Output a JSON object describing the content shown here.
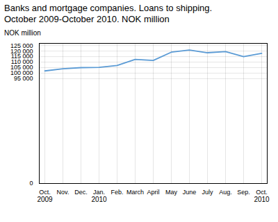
{
  "chart_data": {
    "type": "line",
    "title": "Banks and mortgage companies. Loans to shipping.",
    "subtitle": "October 2009-October 2010. NOK million",
    "y_label": "NOK million",
    "categories": [
      "Oct.",
      "Nov.",
      "Dec.",
      "Jan.",
      "Feb.",
      "March",
      "April",
      "May",
      "June",
      "July",
      "Aug.",
      "Sep.",
      "Oct."
    ],
    "year_labels": [
      "2009",
      null,
      null,
      "2010",
      null,
      null,
      null,
      null,
      null,
      null,
      null,
      null,
      "2010"
    ],
    "values": [
      102000,
      104000,
      105000,
      105200,
      107000,
      112500,
      111500,
      119000,
      121000,
      118500,
      119500,
      115000,
      118000
    ],
    "color": "#5b9bd5",
    "ylim": [
      0,
      127000
    ],
    "yticks": [
      0,
      {
        "value": 95000,
        "label": "95 000"
      },
      {
        "value": 100000,
        "label": "100 000"
      },
      {
        "value": 105000,
        "label": "105 000"
      },
      {
        "value": 110000,
        "label": "110 000"
      },
      {
        "value": 115000,
        "label": "115 000"
      },
      {
        "value": 120000,
        "label": "120 000"
      },
      {
        "value": 125000,
        "label": "125 000"
      }
    ],
    "grid": true
  }
}
